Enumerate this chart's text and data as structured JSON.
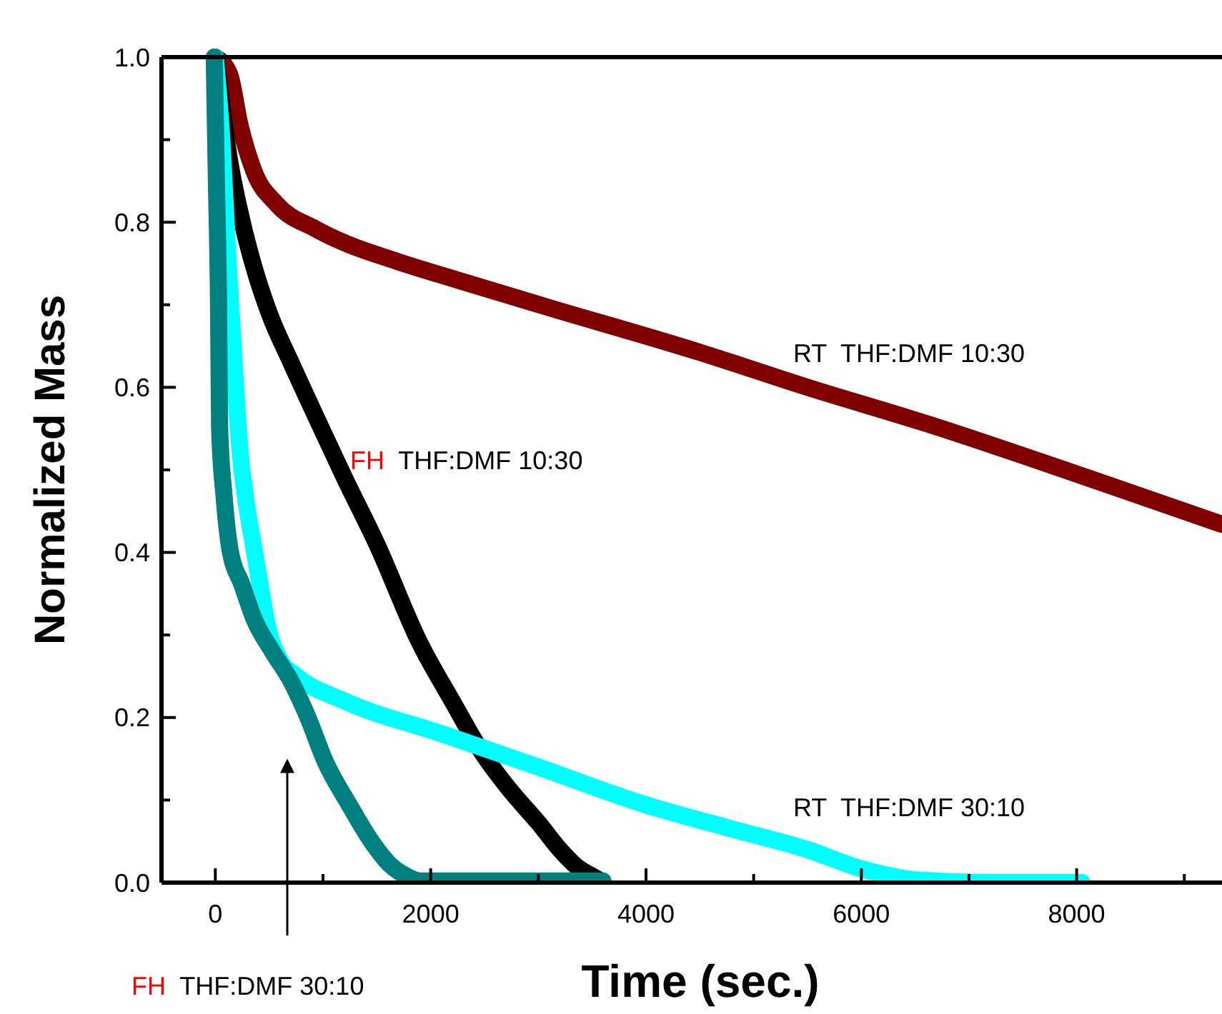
{
  "chart_data": {
    "type": "line",
    "xlabel": "Time (sec.)",
    "ylabel": "Normalized Mass",
    "xlim": [
      -500,
      9350
    ],
    "ylim": [
      0,
      1
    ],
    "xticks": [
      0,
      {
        "value": 1000,
        "label": null
      },
      2000,
      {
        "value": 3000,
        "label": null
      },
      4000,
      {
        "value": 5000,
        "label": null
      },
      6000,
      {
        "value": 7000,
        "label": null
      },
      8000,
      {
        "value": 9000,
        "label": null
      }
    ],
    "yticks": [
      {
        "value": 0,
        "label": "0.0"
      },
      {
        "value": 0.1,
        "label": null
      },
      {
        "value": 0.2,
        "label": "0.2"
      },
      {
        "value": 0.3,
        "label": null
      },
      {
        "value": 0.4,
        "label": "0.4"
      },
      {
        "value": 0.5,
        "label": null
      },
      {
        "value": 0.6,
        "label": "0.6"
      },
      {
        "value": 0.7,
        "label": null
      },
      {
        "value": 0.8,
        "label": "0.8"
      },
      {
        "value": 0.9,
        "label": null
      },
      {
        "value": 1.0,
        "label": "1.0"
      }
    ],
    "annotations": [
      "RT  THF:DMF 10:30",
      "FH  THF:DMF 10:30",
      "RT  THF:DMF 30:10",
      "FH  THF:DMF 30:10"
    ],
    "grid": false,
    "legend": false,
    "line_style": "solid",
    "series": [
      {
        "color": "#800000",
        "x": [
          0,
          133,
          225,
          358,
          570,
          930,
          1200,
          1680,
          2300,
          3010,
          4510,
          5500,
          6630,
          8000,
          9350
        ],
        "values": [
          1.0,
          0.979,
          0.92,
          0.862,
          0.822,
          0.792,
          0.775,
          0.753,
          0.728,
          0.7,
          0.642,
          0.6,
          0.555,
          0.495,
          0.434
        ]
      },
      {
        "color": "#000000",
        "x": [
          0,
          60,
          133,
          250,
          358,
          500,
          703,
          950,
          1190,
          1500,
          1900,
          2200,
          2480,
          2750,
          3010,
          3200,
          3360,
          3540,
          3600
        ],
        "values": [
          1.0,
          0.94,
          0.874,
          0.8,
          0.746,
          0.69,
          0.63,
          0.56,
          0.493,
          0.41,
          0.29,
          0.22,
          0.157,
          0.11,
          0.071,
          0.04,
          0.019,
          0.005,
          0.0
        ]
      },
      {
        "color": "#00ffff",
        "x": [
          0,
          60,
          120,
          180,
          225,
          300,
          358,
          430,
          490,
          600,
          756,
          1200,
          2110,
          3000,
          3980,
          4770,
          5500,
          5970,
          6540,
          7200,
          8050
        ],
        "values": [
          1.0,
          0.9,
          0.75,
          0.62,
          0.53,
          0.45,
          0.406,
          0.35,
          0.308,
          0.27,
          0.25,
          0.22,
          0.18,
          0.14,
          0.095,
          0.066,
          0.04,
          0.018,
          0.003,
          0.0,
          0.0
        ]
      },
      {
        "color": "#008080",
        "x": [
          -10,
          10,
          30,
          40,
          80,
          133,
          250,
          358,
          530,
          703,
          860,
          1020,
          1240,
          1460,
          1620,
          1760,
          1900,
          3600
        ],
        "values": [
          1.0,
          0.85,
          0.7,
          0.55,
          0.47,
          0.406,
          0.36,
          0.32,
          0.28,
          0.244,
          0.2,
          0.147,
          0.095,
          0.048,
          0.022,
          0.009,
          0.002,
          0.002
        ]
      }
    ]
  }
}
